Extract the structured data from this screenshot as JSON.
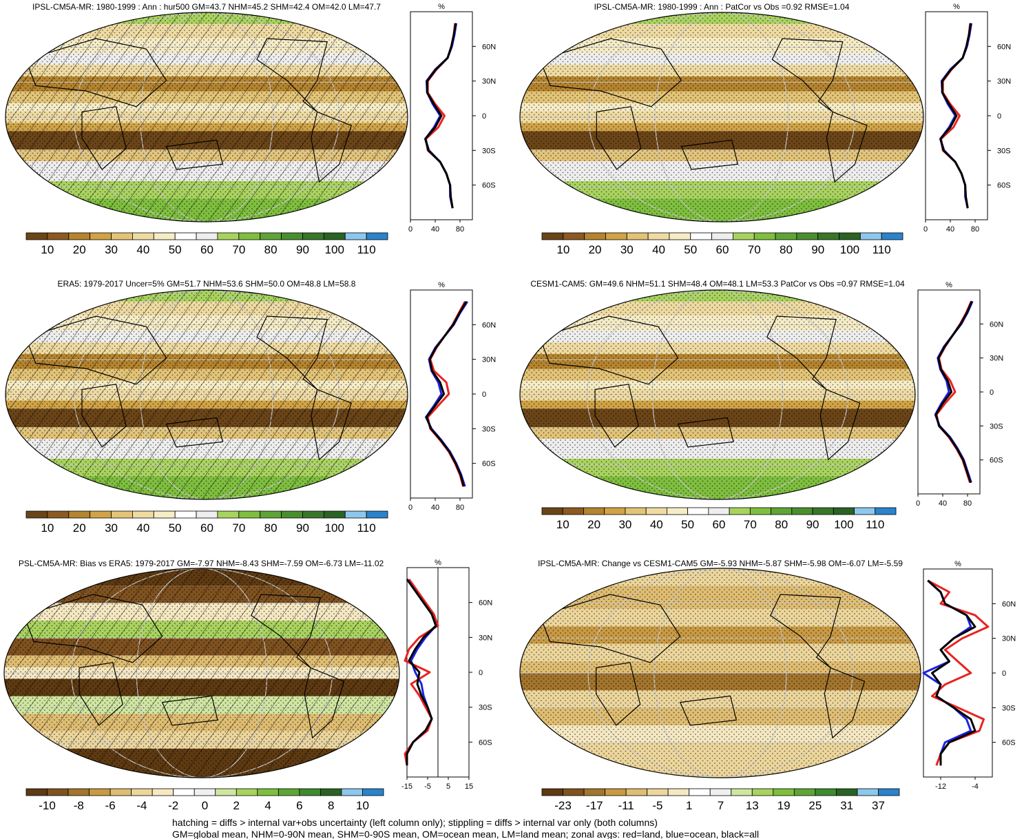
{
  "figure": {
    "footnote_1": "hatching = diffs > internal var+obs uncertainty (left column only); stippling = diffs > internal var only (both columns)",
    "footnote_2": "GM=global mean, NHM=0-90N mean, SHM=0-90S mean, OM=ocean mean, LM=land mean; zonal avgs: red=land, blue=ocean, black=all"
  },
  "palettes": {
    "absolute": [
      "#6b4518",
      "#8c5a22",
      "#b5842e",
      "#d0a346",
      "#e3c477",
      "#efdba2",
      "#f6ecc6",
      "#ffffff",
      "#eeeeee",
      "#a9d35f",
      "#7fbf3f",
      "#5ea536",
      "#4a8f2f",
      "#38772a",
      "#2a6324",
      "#8ec7ec",
      "#2b83cb"
    ],
    "bias": [
      "#5e3a12",
      "#7f5220",
      "#a3752d",
      "#c99a44",
      "#dfbd72",
      "#ecd69c",
      "#f5e8c2",
      "#ffffff",
      "#f0f0f0",
      "#cfe6a0",
      "#a9d35f",
      "#7fbf3f",
      "#5ea536",
      "#3f8a2e",
      "#2a6324",
      "#8ec7ec",
      "#2b83cb"
    ],
    "change": [
      "#5e3a12",
      "#7f5220",
      "#a3752d",
      "#c99a44",
      "#dfbd72",
      "#ecd69c",
      "#f5e8c2",
      "#ffffff",
      "#f0f0f0",
      "#cfe6a0",
      "#a9d35f",
      "#7fbf3f",
      "#5ea536",
      "#3f8a2e",
      "#2a6324",
      "#8ec7ec",
      "#2b83cb"
    ],
    "line_colors": {
      "land": "#e8231f",
      "ocean": "#1f22e0",
      "all": "#000000"
    }
  },
  "chart_data": [
    {
      "type": "heatmap",
      "title": "IPSL-CM5A-MR: 1980-1999 : Ann : hur500 GM=43.7 NHM=45.2 SHM=42.4 OM=42.0 LM=47.7",
      "colorbar": {
        "palette": "absolute",
        "labels": [
          "10",
          "20",
          "30",
          "40",
          "50",
          "60",
          "70",
          "80",
          "90",
          "100",
          "110"
        ]
      },
      "hatching": true,
      "zonal": {
        "label": "%",
        "xlim": [
          0,
          100
        ],
        "xticks": [
          0,
          40,
          80
        ],
        "yticks": [
          "60N",
          "30N",
          "0",
          "30S",
          "60S"
        ],
        "lat": [
          80,
          70,
          60,
          50,
          40,
          30,
          20,
          10,
          0,
          -10,
          -20,
          -30,
          -40,
          -50,
          -60,
          -70,
          -80
        ],
        "series": {
          "land": [
            72,
            70,
            66,
            60,
            42,
            28,
            28,
            40,
            55,
            45,
            25,
            28,
            48,
            58,
            64,
            65,
            68
          ],
          "ocean": [
            74,
            71,
            67,
            60,
            40,
            26,
            27,
            36,
            48,
            38,
            24,
            30,
            48,
            58,
            64,
            64,
            68
          ],
          "all": [
            73,
            70,
            66,
            60,
            41,
            27,
            27,
            38,
            50,
            40,
            24,
            29,
            48,
            58,
            64,
            65,
            68
          ]
        }
      }
    },
    {
      "type": "heatmap",
      "title": "IPSL-CM5A-MR: 1980-1999 : Ann : PatCor vs Obs =0.92 RMSE=1.04",
      "colorbar": {
        "palette": "absolute",
        "labels": [
          "10",
          "20",
          "30",
          "40",
          "50",
          "60",
          "70",
          "80",
          "90",
          "100",
          "110"
        ]
      },
      "hatching": false,
      "zonal": {
        "label": "%",
        "xlim": [
          0,
          100
        ],
        "xticks": [
          0,
          40,
          80
        ],
        "yticks": [
          "60N",
          "30N",
          "0",
          "30S",
          "60S"
        ],
        "lat": [
          80,
          70,
          60,
          50,
          40,
          30,
          20,
          10,
          0,
          -10,
          -20,
          -30,
          -40,
          -50,
          -60,
          -70,
          -80
        ],
        "series": {
          "land": [
            72,
            70,
            66,
            60,
            42,
            28,
            28,
            40,
            55,
            45,
            25,
            28,
            48,
            58,
            64,
            65,
            68
          ],
          "ocean": [
            74,
            71,
            67,
            60,
            40,
            26,
            27,
            36,
            48,
            38,
            24,
            30,
            48,
            58,
            64,
            64,
            68
          ],
          "all": [
            73,
            70,
            66,
            60,
            41,
            27,
            27,
            38,
            50,
            40,
            24,
            29,
            48,
            58,
            64,
            65,
            68
          ]
        }
      }
    },
    {
      "type": "heatmap",
      "title": "ERA5: 1979-2017 Uncer=5% GM=51.7 NHM=53.6 SHM=50.0 OM=48.8 LM=58.8",
      "colorbar": {
        "palette": "absolute",
        "labels": [
          "10",
          "20",
          "30",
          "40",
          "50",
          "60",
          "70",
          "80",
          "90",
          "100",
          "110"
        ]
      },
      "hatching": true,
      "zonal": {
        "label": "%",
        "xlim": [
          0,
          100
        ],
        "xticks": [
          0,
          40,
          80
        ],
        "yticks": [
          "60N",
          "30N",
          "0",
          "30S",
          "60S"
        ],
        "lat": [
          80,
          70,
          60,
          50,
          40,
          30,
          20,
          10,
          0,
          -10,
          -20,
          -30,
          -40,
          -50,
          -60,
          -70,
          -80
        ],
        "series": {
          "land": [
            88,
            78,
            68,
            55,
            42,
            32,
            38,
            58,
            62,
            45,
            28,
            32,
            48,
            62,
            72,
            80,
            85
          ],
          "ocean": [
            92,
            80,
            70,
            55,
            40,
            30,
            34,
            45,
            50,
            38,
            25,
            34,
            50,
            64,
            74,
            82,
            88
          ],
          "all": [
            90,
            79,
            69,
            55,
            41,
            31,
            35,
            48,
            54,
            40,
            26,
            33,
            49,
            63,
            73,
            81,
            86
          ]
        }
      }
    },
    {
      "type": "heatmap",
      "title": "CESM1-CAM5: GM=49.6 NHM=51.1 SHM=48.4 OM=48.1 LM=53.3 PatCor vs Obs =0.97 RMSE=1.04",
      "colorbar": {
        "palette": "absolute",
        "labels": [
          "10",
          "20",
          "30",
          "40",
          "50",
          "60",
          "70",
          "80",
          "90",
          "100",
          "110"
        ]
      },
      "hatching": false,
      "zonal": {
        "label": "%",
        "xlim": [
          0,
          100
        ],
        "xticks": [
          0,
          40,
          80
        ],
        "yticks": [
          "60N",
          "30N",
          "0",
          "30S",
          "60S"
        ],
        "lat": [
          80,
          70,
          60,
          50,
          40,
          30,
          20,
          10,
          0,
          -10,
          -20,
          -30,
          -40,
          -50,
          -60,
          -70,
          -80
        ],
        "series": {
          "land": [
            86,
            78,
            68,
            56,
            44,
            34,
            38,
            52,
            60,
            44,
            30,
            34,
            50,
            62,
            72,
            78,
            84
          ],
          "ocean": [
            88,
            80,
            70,
            56,
            42,
            32,
            36,
            46,
            50,
            38,
            28,
            35,
            52,
            64,
            74,
            80,
            86
          ],
          "all": [
            87,
            79,
            69,
            56,
            43,
            33,
            37,
            48,
            54,
            40,
            29,
            34,
            51,
            63,
            73,
            79,
            85
          ]
        }
      }
    },
    {
      "type": "heatmap",
      "title": "PSL-CM5A-MR: Bias vs ERA5: 1979-2017 GM=-7.97 NHM=-8.43 SHM=-7.59 OM=-6.73 LM=-11.02",
      "colorbar": {
        "palette": "bias",
        "labels": [
          "-10",
          "-8",
          "-6",
          "-4",
          "-2",
          "0",
          "2",
          "4",
          "6",
          "8",
          "10"
        ]
      },
      "hatching": true,
      "zonal": {
        "label": "%",
        "xlim": [
          -15,
          15
        ],
        "xticks": [
          -15,
          -5,
          5,
          15
        ],
        "tick_labels": [
          "-15",
          "-5",
          "5",
          "15"
        ],
        "yticks": [
          "60N",
          "30N",
          "0",
          "30S",
          "60S"
        ],
        "lat": [
          80,
          70,
          60,
          50,
          40,
          30,
          20,
          10,
          0,
          -10,
          -20,
          -30,
          -40,
          -50,
          -60,
          -70,
          -80
        ],
        "series": {
          "land": [
            -14,
            -10,
            -6,
            -2,
            0,
            -9,
            -14,
            -16,
            -4,
            -13,
            -9,
            -6,
            -3,
            -5,
            -12,
            -16,
            -15
          ],
          "ocean": [
            -15,
            -11,
            -7,
            -3,
            -1,
            -6,
            -10,
            -13,
            -11,
            -8,
            -7,
            -5,
            -3,
            -6,
            -12,
            -15,
            -15
          ],
          "all": [
            -15,
            -11,
            -7,
            -3,
            -1,
            -7,
            -11,
            -14,
            -9,
            -10,
            -8,
            -5,
            -3,
            -6,
            -12,
            -15,
            -15
          ]
        }
      }
    },
    {
      "type": "heatmap",
      "title": "IPSL-CM5A-MR: Change vs CESM1-CAM5 GM=-5.93 NHM=-5.87 SHM=-5.98 OM=-6.07 LM=-5.59",
      "colorbar": {
        "palette": "change",
        "labels": [
          "-23",
          "-17",
          "-11",
          "-5",
          "1",
          "7",
          "13",
          "19",
          "25",
          "31",
          "37"
        ]
      },
      "hatching": false,
      "zonal": {
        "label": "%",
        "xlim": [
          -16,
          0
        ],
        "xticks": [
          -12,
          -4
        ],
        "tick_labels": [
          "-12",
          "-4"
        ],
        "yticks": [
          "60N",
          "30N",
          "0",
          "30S",
          "60S"
        ],
        "lat": [
          80,
          70,
          60,
          50,
          40,
          30,
          20,
          10,
          0,
          -10,
          -20,
          -30,
          -40,
          -50,
          -60,
          -70,
          -80
        ],
        "series": {
          "land": [
            -15,
            -10,
            -12,
            -4,
            -1,
            -7,
            -11,
            -8,
            -5,
            -11,
            -14,
            -8,
            -2,
            -3,
            -10,
            -12,
            -13
          ],
          "ocean": [
            -15,
            -12,
            -11,
            -6,
            -5,
            -9,
            -12,
            -10,
            -16,
            -12,
            -13,
            -9,
            -6,
            -5,
            -11,
            -12,
            -12
          ],
          "all": [
            -15,
            -12,
            -11,
            -6,
            -4,
            -9,
            -12,
            -10,
            -14,
            -12,
            -13,
            -9,
            -5,
            -4,
            -10,
            -12,
            -12
          ]
        }
      }
    }
  ]
}
